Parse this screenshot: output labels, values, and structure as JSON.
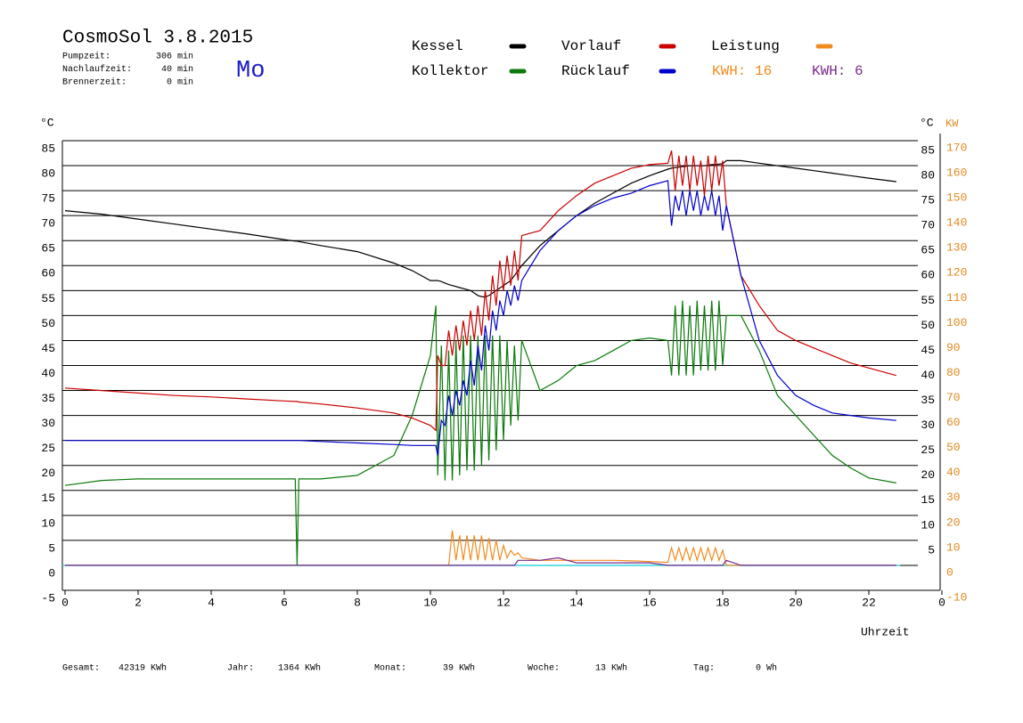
{
  "chart_data": {
    "type": "line",
    "title": "CosmoSol 3.8.2015",
    "day": "Mo",
    "info": [
      {
        "label": "Pumpzeit:",
        "value": "306 min"
      },
      {
        "label": "Nachlaufzeit:",
        "value": "40 min"
      },
      {
        "label": "Brennerzeit:",
        "value": "0 min"
      }
    ],
    "kwh": [
      {
        "text": "KWH: 16",
        "color": "#f08c1e"
      },
      {
        "text": "KWH: 6",
        "color": "#7a2a8a"
      }
    ],
    "y_label": "°C",
    "y2_label_left": "°C",
    "y2_label": "KW",
    "x_label": "Uhrzeit",
    "footer": [
      {
        "label": "Gesamt:",
        "value": "42319 KWh"
      },
      {
        "label": "Jahr:",
        "value": "1364 KWh"
      },
      {
        "label": "Monat:",
        "value": "39 KWh"
      },
      {
        "label": "Woche:",
        "value": "13 KWh"
      },
      {
        "label": "Tag:",
        "value": "0 Wh"
      }
    ],
    "xlim": [
      0,
      24
    ],
    "xticks": [
      0,
      2,
      4,
      6,
      8,
      10,
      12,
      14,
      16,
      18,
      20,
      22,
      {
        "value": 24,
        "label": "0"
      }
    ],
    "ylim": [
      -5,
      85
    ],
    "yticks": [
      -5,
      0,
      5,
      10,
      15,
      20,
      25,
      30,
      35,
      40,
      45,
      50,
      55,
      60,
      65,
      70,
      75,
      80,
      85
    ],
    "y_right_ticks": [
      5,
      10,
      15,
      20,
      25,
      30,
      35,
      40,
      45,
      50,
      55,
      60,
      65,
      70,
      75,
      80,
      85
    ],
    "y2lim": [
      -10,
      170
    ],
    "y2ticks": [
      -10,
      0,
      10,
      20,
      30,
      40,
      50,
      60,
      70,
      80,
      90,
      100,
      110,
      120,
      130,
      140,
      150,
      160,
      170
    ],
    "grid": true,
    "x": [
      0,
      1,
      2,
      3,
      4,
      5,
      6,
      6.3,
      6.35,
      6.4,
      7,
      8,
      9,
      9.5,
      10,
      10.15,
      10.2,
      10.3,
      10.4,
      10.5,
      10.6,
      10.7,
      10.8,
      10.9,
      11,
      11.1,
      11.2,
      11.3,
      11.4,
      11.5,
      11.6,
      11.7,
      11.8,
      11.9,
      12,
      12.1,
      12.2,
      12.3,
      12.4,
      12.5,
      13,
      13.5,
      14,
      14.5,
      15,
      15.5,
      16,
      16.5,
      16.6,
      16.7,
      16.8,
      16.9,
      17,
      17.1,
      17.2,
      17.3,
      17.4,
      17.5,
      17.6,
      17.7,
      17.8,
      17.9,
      18,
      18.1,
      18.5,
      19,
      19.5,
      20,
      20.5,
      21,
      21.5,
      22,
      22.75
    ],
    "series": [
      {
        "name": "Kessel",
        "color": "#000000",
        "values": [
          71,
          70.3,
          69.3,
          68.3,
          67.3,
          66.3,
          65.2,
          64.9,
          64.9,
          64.8,
          64,
          62.8,
          60.5,
          59,
          57,
          57,
          57,
          56.8,
          56.5,
          56.2,
          56,
          55.8,
          55.6,
          55.4,
          55.2,
          55,
          54.5,
          54,
          53.8,
          53.7,
          54,
          54.5,
          55,
          55.5,
          56,
          56.5,
          57,
          58,
          59,
          60,
          64,
          67,
          70,
          72.5,
          74.5,
          76.5,
          78,
          79.3,
          79.5,
          79.6,
          79.7,
          79.8,
          79.9,
          80,
          80,
          80,
          80,
          80,
          80.1,
          80.2,
          80.2,
          80.3,
          80.4,
          81,
          81,
          80.5,
          80,
          79.5,
          79,
          78.5,
          78,
          77.5,
          76.8
        ]
      },
      {
        "name": "Kollektor",
        "color": "#0a7a0a",
        "values": [
          16,
          17,
          17.3,
          17.3,
          17.3,
          17.3,
          17.3,
          17.3,
          0,
          17.3,
          17.3,
          18,
          22,
          30,
          42,
          52,
          18,
          44,
          17,
          43,
          17,
          45,
          18,
          46,
          19,
          46,
          19,
          46,
          20,
          46,
          21,
          46,
          23,
          46,
          25,
          45,
          28,
          44,
          29,
          45,
          35,
          37,
          40,
          41,
          43,
          45,
          45.5,
          45,
          38,
          52,
          38,
          53,
          38,
          52,
          38,
          53,
          39,
          52,
          39,
          53,
          39,
          53,
          40,
          50,
          50,
          43,
          34,
          30,
          26,
          22,
          19.5,
          17.5,
          16.5
        ]
      },
      {
        "name": "Vorlauf",
        "color": "#cc0000",
        "values": [
          35.5,
          35,
          34.5,
          34,
          33.7,
          33.3,
          32.9,
          32.8,
          32.8,
          32.7,
          32.3,
          31.5,
          30.5,
          29.5,
          28,
          27,
          42,
          40,
          40,
          47,
          42,
          48,
          43,
          49,
          44,
          51,
          45,
          52,
          46,
          55,
          49,
          58,
          52,
          61,
          55,
          62,
          56,
          63,
          57,
          66,
          67,
          71,
          74,
          76.5,
          78,
          79.5,
          80.2,
          80.5,
          83,
          75,
          82,
          76,
          82,
          75,
          82,
          76,
          81,
          74,
          82,
          75,
          82,
          76,
          81,
          72,
          58,
          52,
          47,
          45,
          43.5,
          42,
          40.5,
          39.5,
          38
        ]
      },
      {
        "name": "Rücklauf",
        "color": "#0000cc",
        "values": [
          25,
          25,
          25,
          25,
          25,
          25,
          25,
          25,
          25,
          25,
          24.8,
          24.5,
          24.2,
          24,
          24,
          24,
          22,
          29,
          28,
          34,
          30,
          35,
          32,
          37,
          34,
          41,
          36,
          44,
          39,
          48,
          43,
          51,
          47,
          53,
          50,
          55,
          52,
          56,
          53,
          57,
          63,
          67,
          70,
          72,
          73.5,
          74.5,
          76,
          77,
          68,
          74,
          71,
          75,
          70,
          75,
          71,
          75,
          70,
          74,
          71,
          75,
          70,
          74,
          67,
          72,
          58,
          45,
          38,
          34,
          32,
          30.5,
          30,
          29.5,
          29
        ]
      },
      {
        "name": "Leistung",
        "color": "#f08c1e",
        "axis": "y2",
        "values": [
          0,
          0,
          0,
          0,
          0,
          0,
          0,
          0,
          0,
          0,
          0,
          0,
          0,
          0,
          0,
          0,
          0,
          0,
          0,
          0,
          14,
          2,
          12,
          2,
          12,
          2,
          12,
          2,
          12,
          2,
          11,
          2,
          10,
          2,
          8,
          3,
          6,
          4,
          5,
          3,
          2,
          2,
          2,
          2,
          2,
          1.8,
          1.5,
          1.2,
          7,
          2,
          7,
          2,
          7,
          2,
          7,
          2,
          7,
          2,
          7,
          2,
          7,
          2,
          6,
          0,
          0,
          0,
          0,
          0,
          0,
          0,
          0,
          0,
          0
        ]
      },
      {
        "color": "#7a2a8a",
        "axis": "y2",
        "values": [
          0,
          0,
          0,
          0,
          0,
          0,
          0,
          0,
          0,
          0,
          0,
          0,
          0,
          0,
          0,
          0,
          0,
          0,
          0,
          0,
          0,
          0,
          0,
          0,
          0,
          0,
          0,
          0,
          0,
          0,
          0,
          0,
          0,
          0,
          0,
          0,
          0,
          0,
          2,
          2,
          2,
          3,
          1,
          1,
          1,
          1,
          1,
          0,
          0,
          0,
          0,
          0,
          0,
          0,
          0,
          0,
          0,
          0,
          0,
          0,
          0,
          0,
          0,
          2,
          0,
          0,
          0,
          0,
          0,
          0,
          0,
          0,
          0
        ]
      }
    ]
  }
}
